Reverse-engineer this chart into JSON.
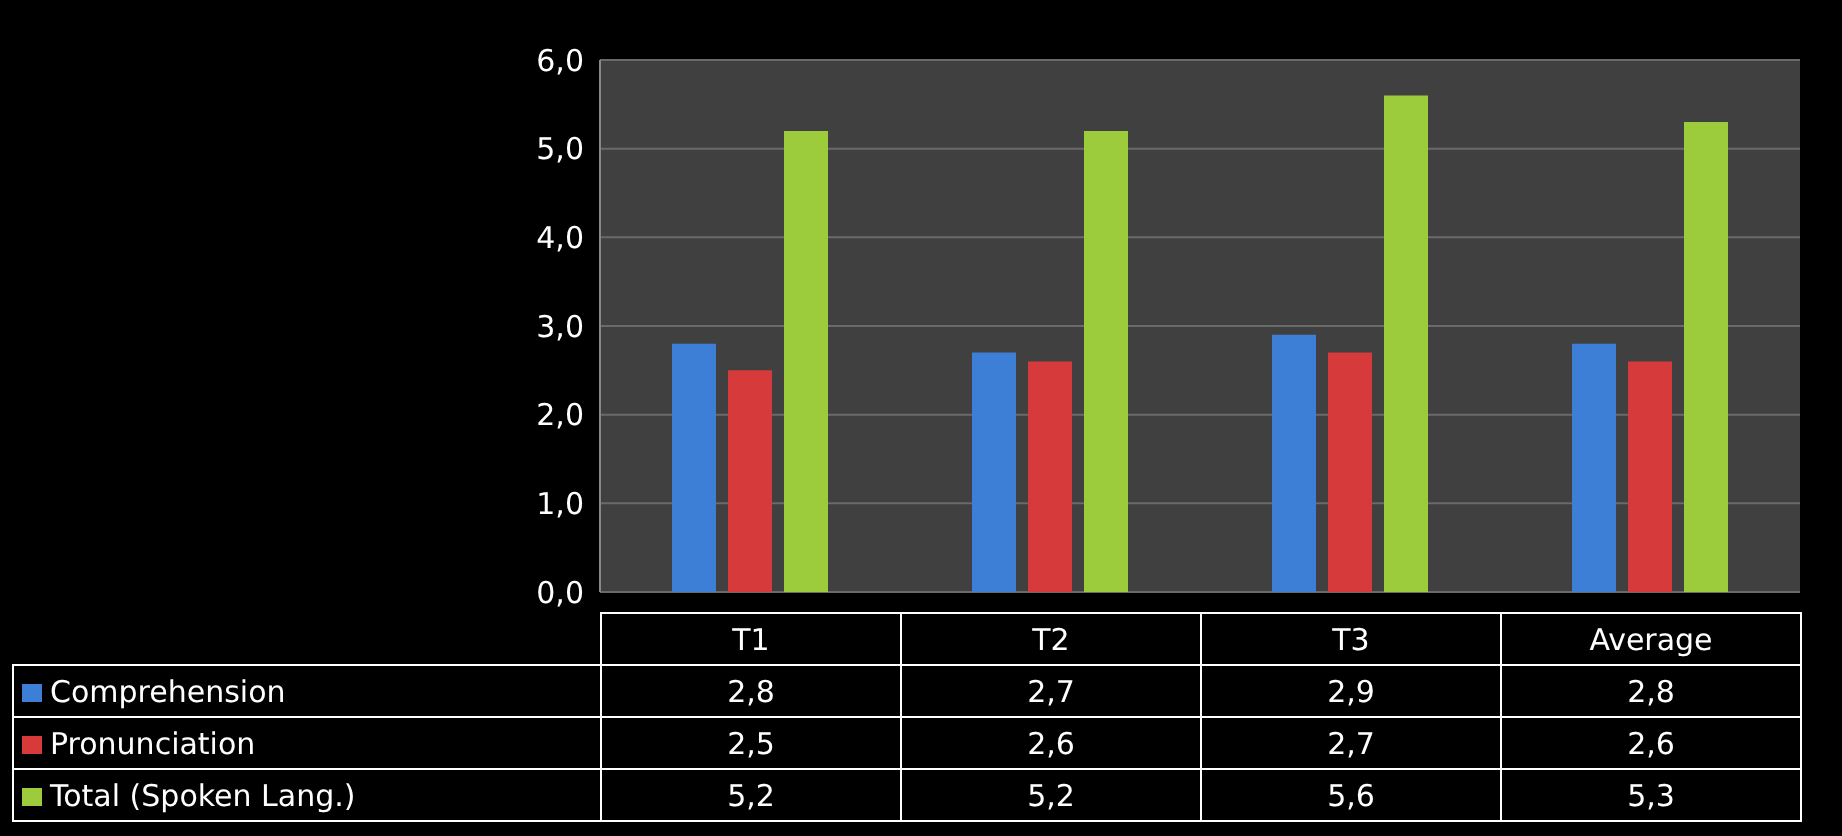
{
  "chart_data": {
    "type": "bar",
    "categories": [
      "T1",
      "T2",
      "T3",
      "Average"
    ],
    "series": [
      {
        "name": "Comprehension",
        "color": "#3d7fd6",
        "values": [
          2.8,
          2.7,
          2.9,
          2.8
        ],
        "value_labels": [
          "2,8",
          "2,7",
          "2,9",
          "2,8"
        ]
      },
      {
        "name": "Pronunciation",
        "color": "#d63a3a",
        "values": [
          2.5,
          2.6,
          2.7,
          2.6
        ],
        "value_labels": [
          "2,5",
          "2,6",
          "2,7",
          "2,6"
        ]
      },
      {
        "name": "Total (Spoken Lang.)",
        "color": "#9ccc3c",
        "values": [
          5.2,
          5.2,
          5.6,
          5.3
        ],
        "value_labels": [
          "5,2",
          "5,2",
          "5,6",
          "5,3"
        ]
      }
    ],
    "ylim": [
      0,
      6
    ],
    "yticks": [
      {
        "value": 0,
        "label": "0,0"
      },
      {
        "value": 1,
        "label": "1,0"
      },
      {
        "value": 2,
        "label": "2,0"
      },
      {
        "value": 3,
        "label": "3,0"
      },
      {
        "value": 4,
        "label": "4,0"
      },
      {
        "value": 5,
        "label": "5,0"
      },
      {
        "value": 6,
        "label": "6,0"
      }
    ],
    "grid": "y",
    "legend": "bottom"
  }
}
